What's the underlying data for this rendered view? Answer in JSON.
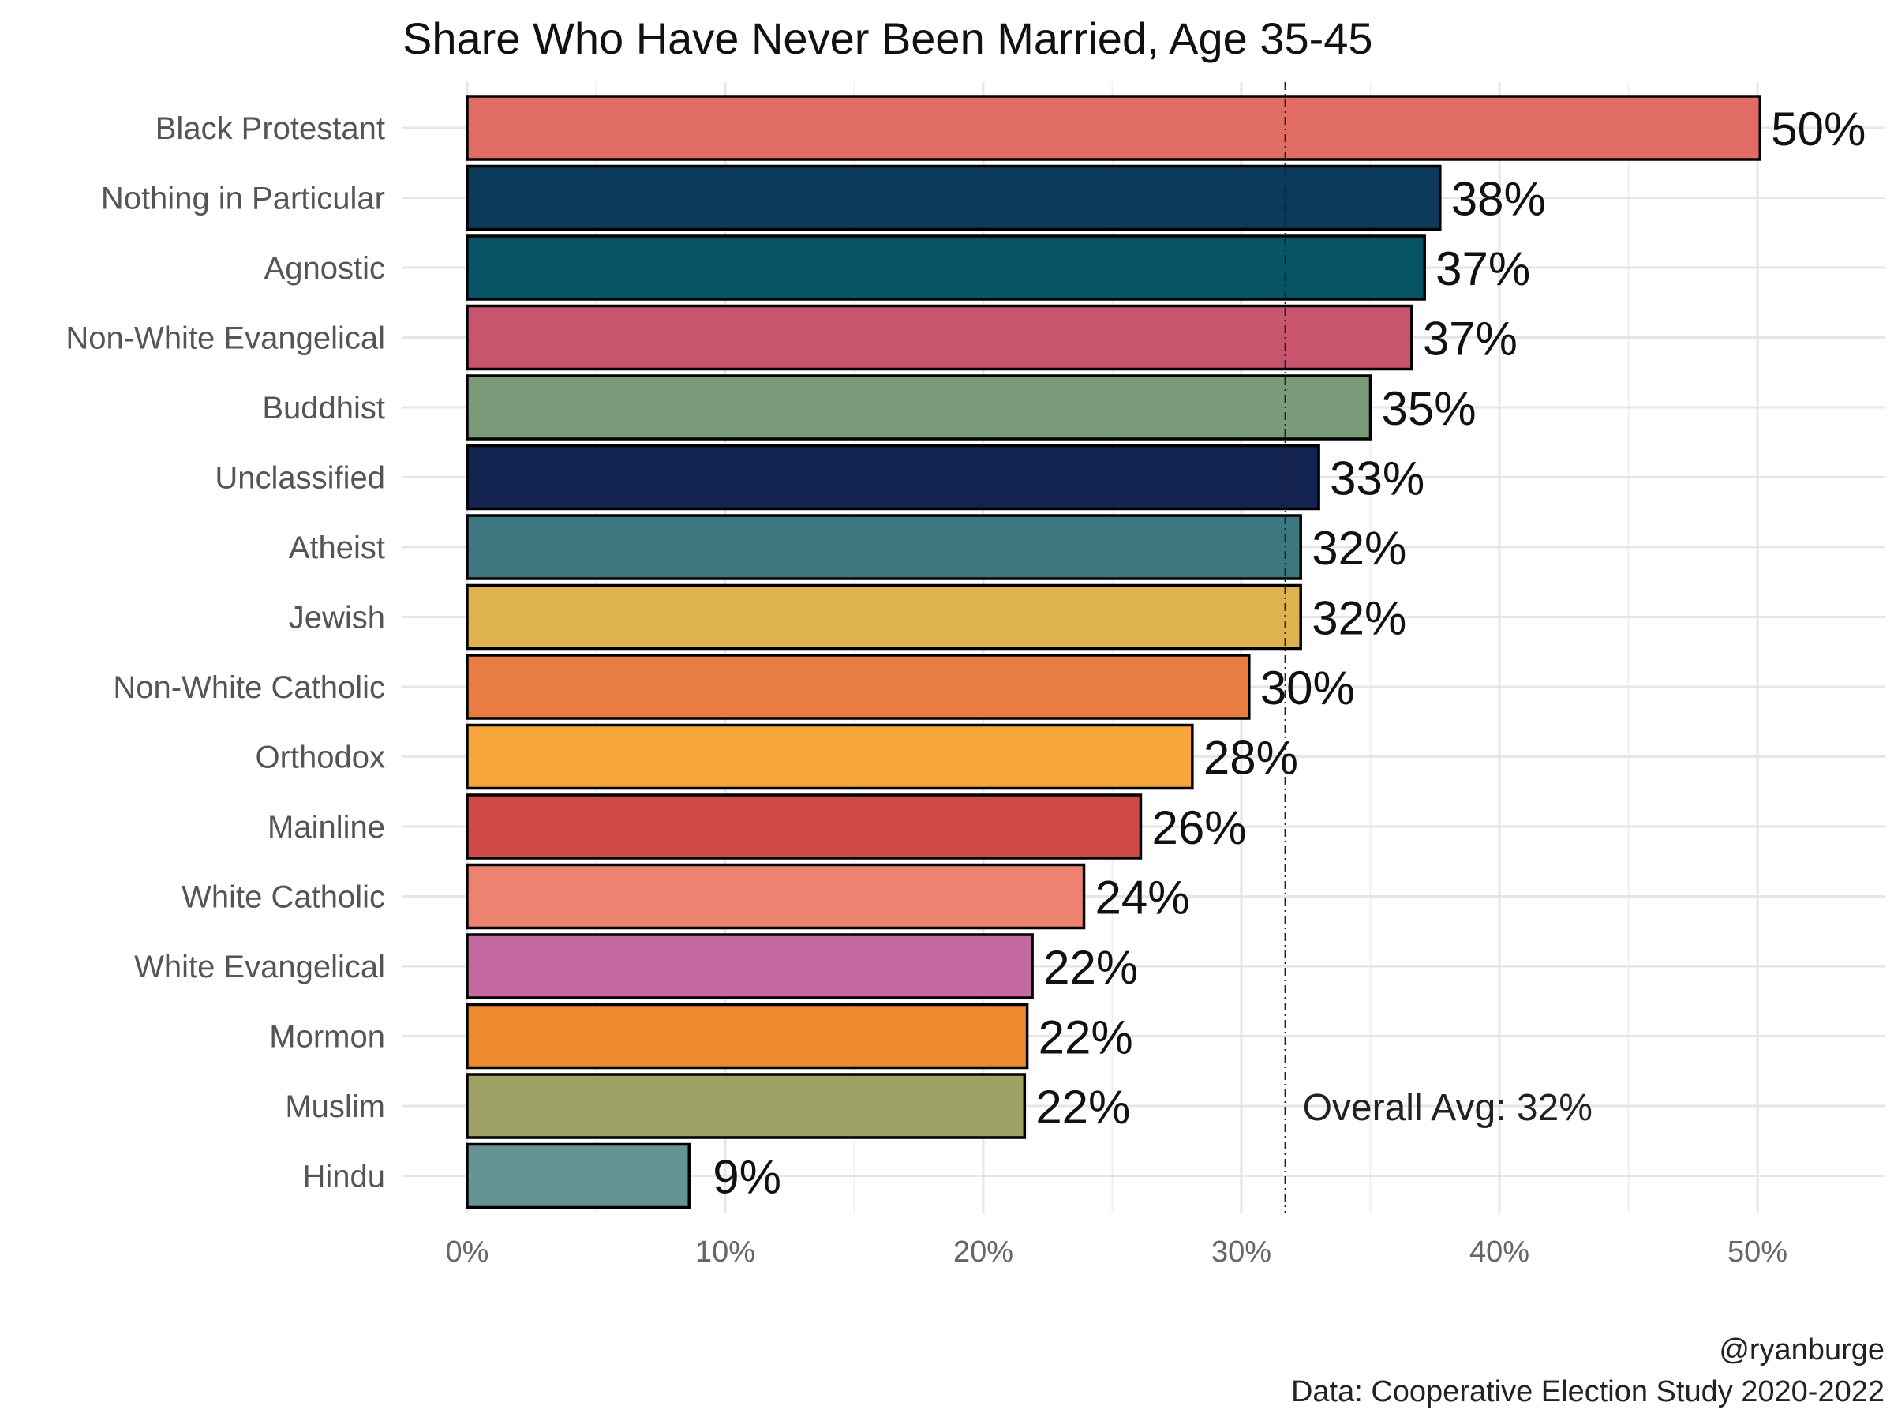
{
  "chart_data": {
    "type": "bar",
    "orientation": "horizontal",
    "title": "Share Who Have Never Been Married, Age 35-45",
    "xlabel": "",
    "ylabel": "",
    "xlim": [
      0,
      0.545
    ],
    "x_ticks": [
      0,
      0.1,
      0.2,
      0.3,
      0.4,
      0.5
    ],
    "x_tick_labels": [
      "0%",
      "10%",
      "20%",
      "30%",
      "40%",
      "50%"
    ],
    "grid": true,
    "categories": [
      "Black Protestant",
      "Nothing in Particular",
      "Agnostic",
      "Non-White Evangelical",
      "Buddhist",
      "Unclassified",
      "Atheist",
      "Jewish",
      "Non-White Catholic",
      "Orthodox",
      "Mainline",
      "White Catholic",
      "White Evangelical",
      "Mormon",
      "Muslim",
      "Hindu"
    ],
    "values": [
      0.501,
      0.377,
      0.371,
      0.366,
      0.35,
      0.33,
      0.323,
      0.323,
      0.303,
      0.281,
      0.261,
      0.239,
      0.219,
      0.217,
      0.216,
      0.086
    ],
    "value_labels": [
      "50%",
      "38%",
      "37%",
      "37%",
      "35%",
      "33%",
      "32%",
      "32%",
      "30%",
      "28%",
      "26%",
      "24%",
      "22%",
      "22%",
      "22%",
      "9%"
    ],
    "colors": [
      "#E06C64",
      "#0B3A5A",
      "#075466",
      "#C8556D",
      "#7A9A7A",
      "#13234F",
      "#3D7880",
      "#DDB24F",
      "#E87C42",
      "#F8A63C",
      "#CF4A46",
      "#EC826F",
      "#C56AA0",
      "#EE8A2E",
      "#9EA265",
      "#669394"
    ],
    "reference_line": {
      "value": 0.317,
      "style": "dashed",
      "label": "Overall Avg: 32%"
    }
  },
  "caption": {
    "author": "@ryanburge",
    "source": "Data: Cooperative Election Study 2020-2022"
  }
}
